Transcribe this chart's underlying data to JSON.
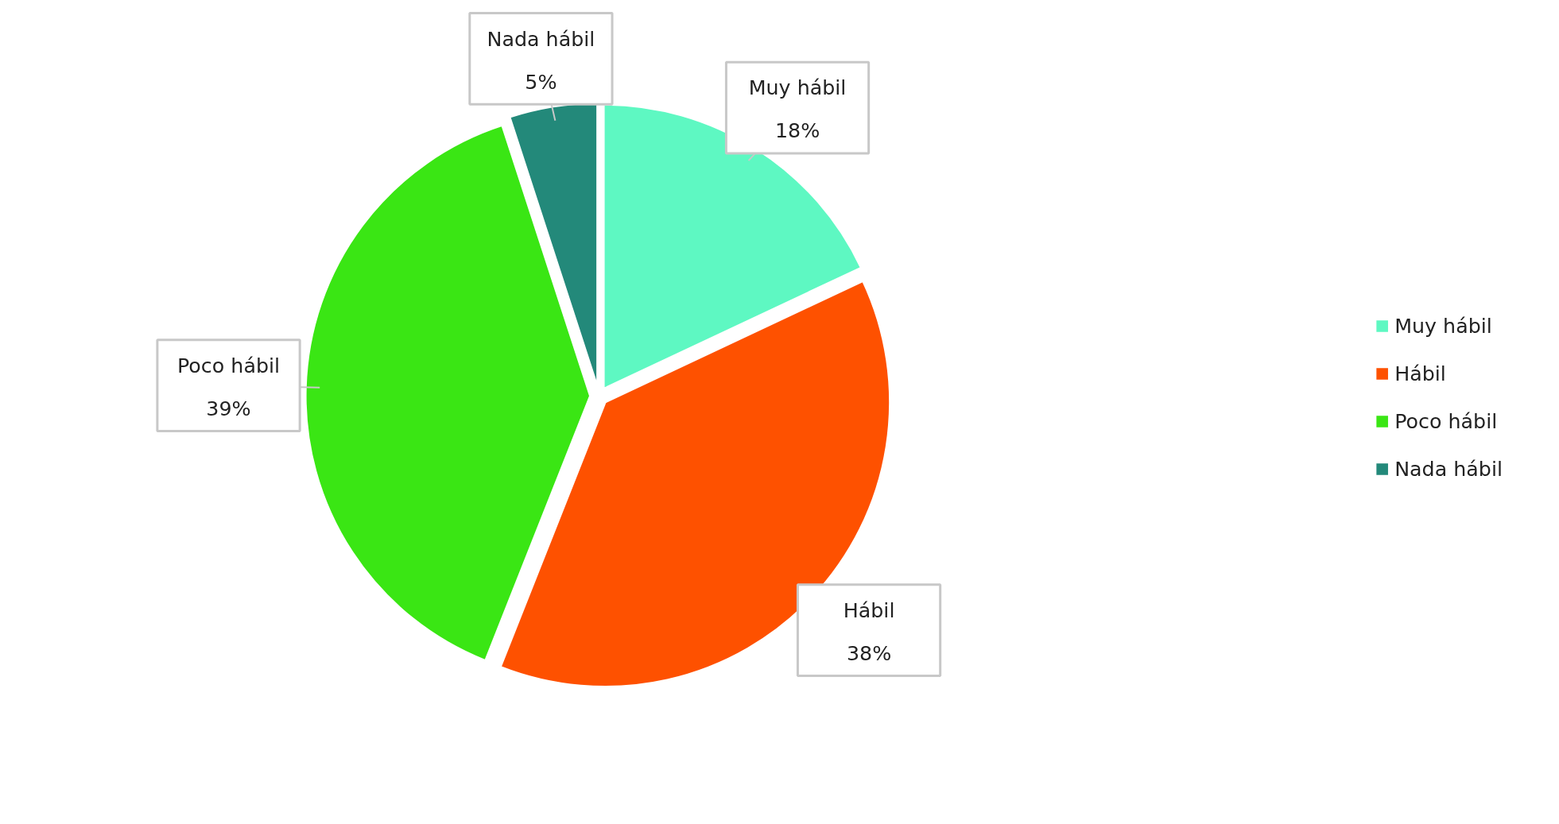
{
  "chart_data": {
    "type": "pie",
    "categories": [
      "Muy hábil",
      "Hábil",
      "Poco hábil",
      "Nada hábil"
    ],
    "values": [
      18,
      38,
      39,
      5
    ],
    "value_labels": [
      "18%",
      "38%",
      "39%",
      "5%"
    ],
    "colors": [
      "#5ef8c2",
      "#fe5100",
      "#3ae614",
      "#23897a"
    ],
    "legend": "right"
  }
}
